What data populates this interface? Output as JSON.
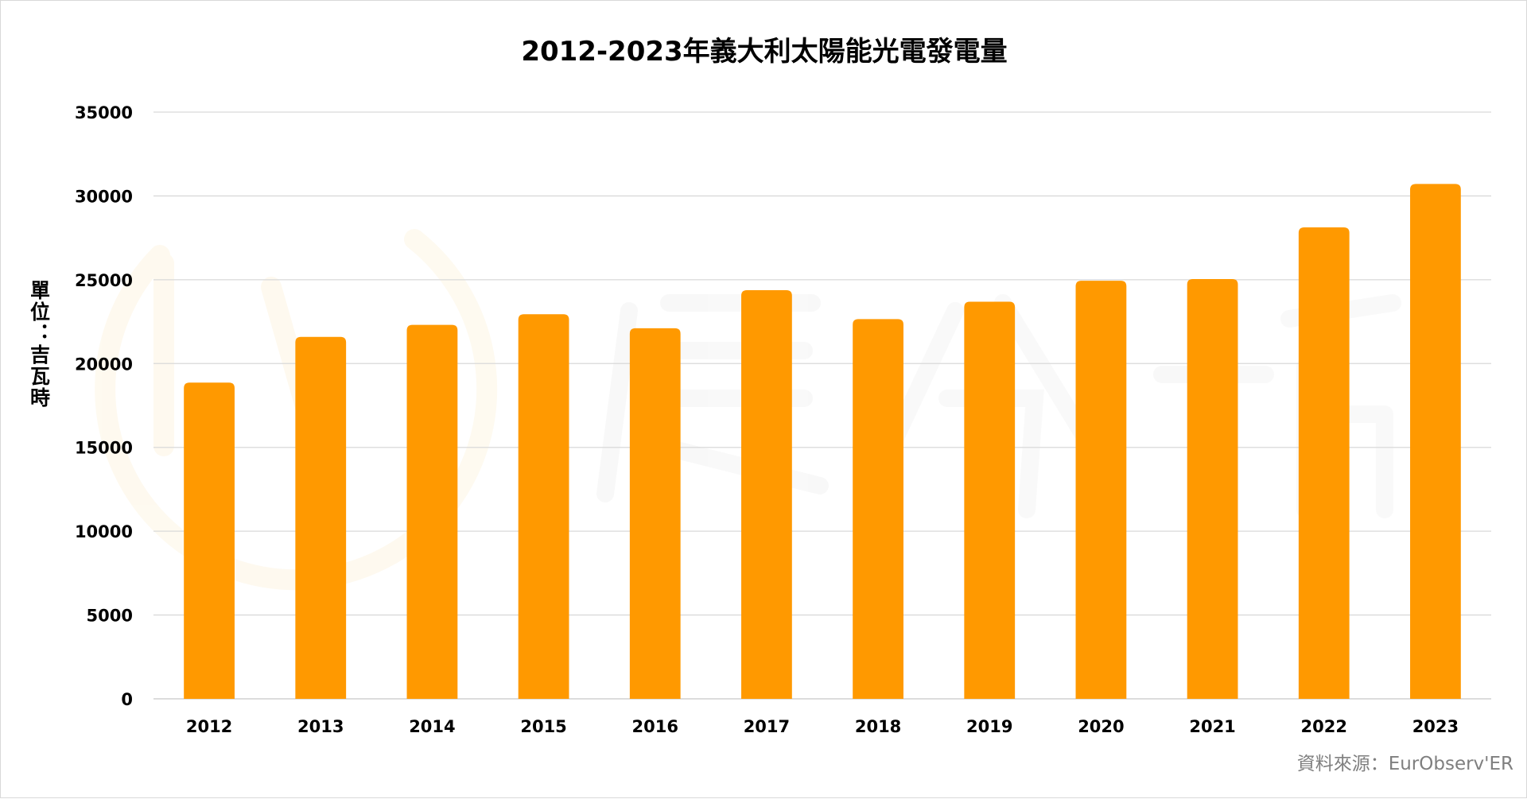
{
  "chart_data": {
    "type": "bar",
    "title": "2012-2023年義大利太陽能光電發電量",
    "xlabel": "",
    "ylabel": "單位：吉瓦時",
    "categories": [
      "2012",
      "2013",
      "2014",
      "2015",
      "2016",
      "2017",
      "2018",
      "2019",
      "2020",
      "2021",
      "2022",
      "2023"
    ],
    "series": [
      {
        "values": [
          18862,
          21589,
          22306,
          22942,
          22104,
          24378,
          22654,
          23689,
          24942,
          25039,
          28121,
          30711
        ]
      }
    ],
    "ylim": [
      0,
      35000
    ],
    "yticks": [
      0,
      5000,
      10000,
      15000,
      20000,
      25000,
      30000,
      35000
    ],
    "grid": true,
    "legend": "none",
    "bar_color": "#FF9900",
    "source": "資料來源：EurObserv'ER"
  }
}
